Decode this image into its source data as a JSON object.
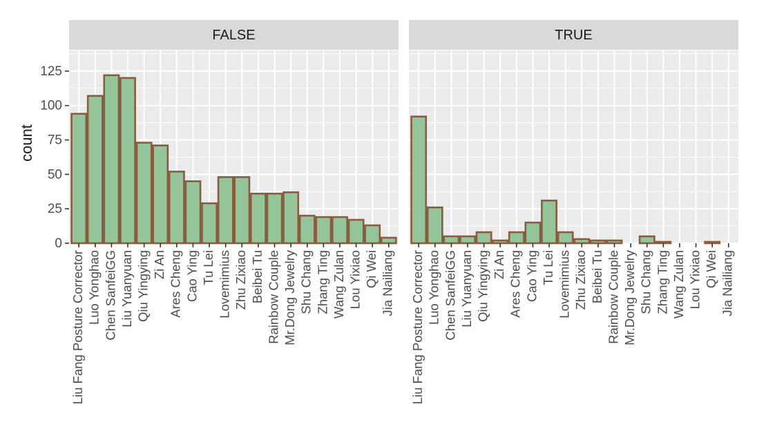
{
  "chart_data": {
    "type": "bar",
    "ylabel": "count",
    "xlabel": "",
    "ylim": [
      0,
      140
    ],
    "yticks": [
      0,
      25,
      50,
      75,
      100,
      125
    ],
    "categories": [
      "Liu Fang Posture Corrector",
      "Luo Yonghao",
      "Chen SanfeiGG",
      "Liu Yuanyuan",
      "Qiu Yingying",
      "Zi An",
      "Ares Cheng",
      "Cao Ying",
      "Tu Lei",
      "Lovemimius",
      "Zhu Zixiao",
      "Beibei Tu",
      "Rainbow Couple",
      "Mr.Dong Jewelry",
      "Shu Chang",
      "Zhang Ting",
      "Wang Zulan",
      "Lou Yixiao",
      "Qi Wei",
      "Jia Nailiang"
    ],
    "facets": [
      {
        "label": "FALSE",
        "values": [
          94,
          107,
          122,
          120,
          73,
          71,
          52,
          45,
          29,
          48,
          48,
          36,
          36,
          37,
          20,
          19,
          19,
          17,
          13,
          4
        ]
      },
      {
        "label": "TRUE",
        "values": [
          92,
          26,
          5,
          5,
          8,
          2,
          8,
          15,
          31,
          8,
          3,
          2,
          2,
          0,
          5,
          1,
          0,
          0,
          1,
          0
        ]
      }
    ],
    "grid": true,
    "colors": {
      "fill": "#93c49a",
      "outline": "#8c5a3c",
      "panel": "#ebebeb",
      "strip": "#d9d9d9",
      "grid": "#ffffff"
    }
  }
}
